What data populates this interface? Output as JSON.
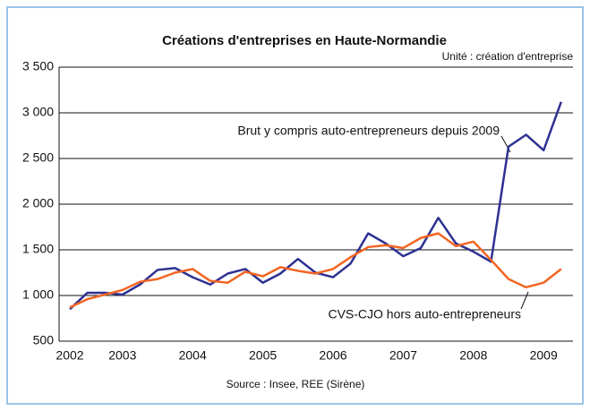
{
  "chart_data": {
    "type": "line",
    "title": "Créations d'entreprises en Haute-Normandie",
    "subtitle": "Unité : création d'entreprise",
    "source": "Source : Insee, REE (Sirène)",
    "categories": [
      "2002",
      null,
      null,
      "2003",
      null,
      null,
      null,
      "2004",
      null,
      null,
      null,
      "2005",
      null,
      null,
      null,
      "2006",
      null,
      null,
      null,
      "2007",
      null,
      null,
      null,
      "2008",
      null,
      null,
      null,
      "2009",
      null
    ],
    "series": [
      {
        "name": "Brut y compris auto-entrepreneurs depuis 2009",
        "color": "#2e3192",
        "values": [
          850,
          1030,
          1030,
          1010,
          1120,
          1280,
          1300,
          1200,
          1120,
          1240,
          1290,
          1140,
          1240,
          1400,
          1250,
          1200,
          1350,
          1680,
          1570,
          1430,
          1520,
          1850,
          1570,
          1480,
          1370,
          2630,
          2760,
          2590,
          3120
        ]
      },
      {
        "name": "CVS-CJO hors auto-entrepreneurs",
        "color": "#f26522",
        "values": [
          870,
          960,
          1010,
          1060,
          1150,
          1180,
          1250,
          1290,
          1160,
          1140,
          1260,
          1210,
          1310,
          1270,
          1240,
          1290,
          1420,
          1530,
          1550,
          1520,
          1630,
          1680,
          1540,
          1590,
          1390,
          1180,
          1090,
          1140,
          1290
        ]
      }
    ],
    "ylim": [
      500,
      3500
    ],
    "yticks": [
      {
        "value": 500,
        "label": "500"
      },
      {
        "value": 1000,
        "label": "1 000"
      },
      {
        "value": 1500,
        "label": "1 500"
      },
      {
        "value": 2000,
        "label": "2 000"
      },
      {
        "value": 2500,
        "label": "2 500"
      },
      {
        "value": 3000,
        "label": "3 000"
      },
      {
        "value": 3500,
        "label": "3 500"
      }
    ],
    "grid": true
  }
}
